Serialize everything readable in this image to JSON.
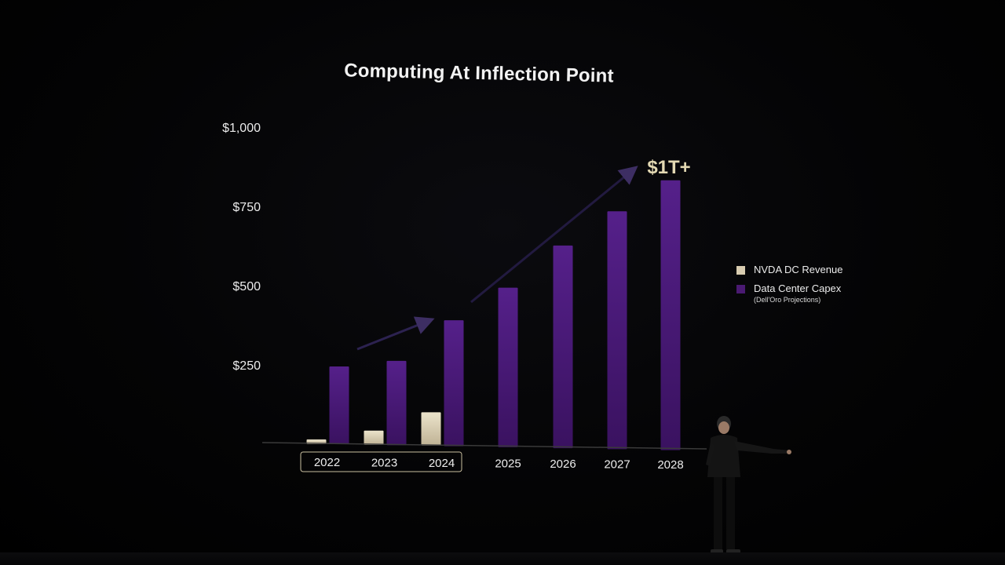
{
  "slide": {
    "title": "Computing At Inflection Point"
  },
  "colors": {
    "nvda": "#d8ccb0",
    "capex": "#4a1a72",
    "background": "#000000"
  },
  "chart_data": {
    "type": "bar",
    "title": "Computing At Inflection Point",
    "xlabel": "",
    "ylabel": "",
    "categories": [
      "2022",
      "2023",
      "2024",
      "2025",
      "2026",
      "2027",
      "2028"
    ],
    "ylim": [
      0,
      1000
    ],
    "yticks": [
      "$1,000",
      "$750",
      "$500",
      "$250"
    ],
    "ytick_values": [
      1000,
      750,
      500,
      250
    ],
    "grid": false,
    "highlighted_categories": [
      "2022",
      "2023",
      "2024"
    ],
    "series": [
      {
        "name": "NVDA DC Revenue",
        "color": "#d8ccb0",
        "values": [
          15,
          45,
          105,
          null,
          null,
          null,
          null
        ]
      },
      {
        "name": "Data Center Capex",
        "note": "(Dell'Oro Projections)",
        "color": "#4a1a72",
        "values": [
          245,
          265,
          395,
          500,
          635,
          745,
          845
        ]
      }
    ],
    "annotations": [
      {
        "text": "$1T+"
      }
    ],
    "legend_placement": "right"
  }
}
